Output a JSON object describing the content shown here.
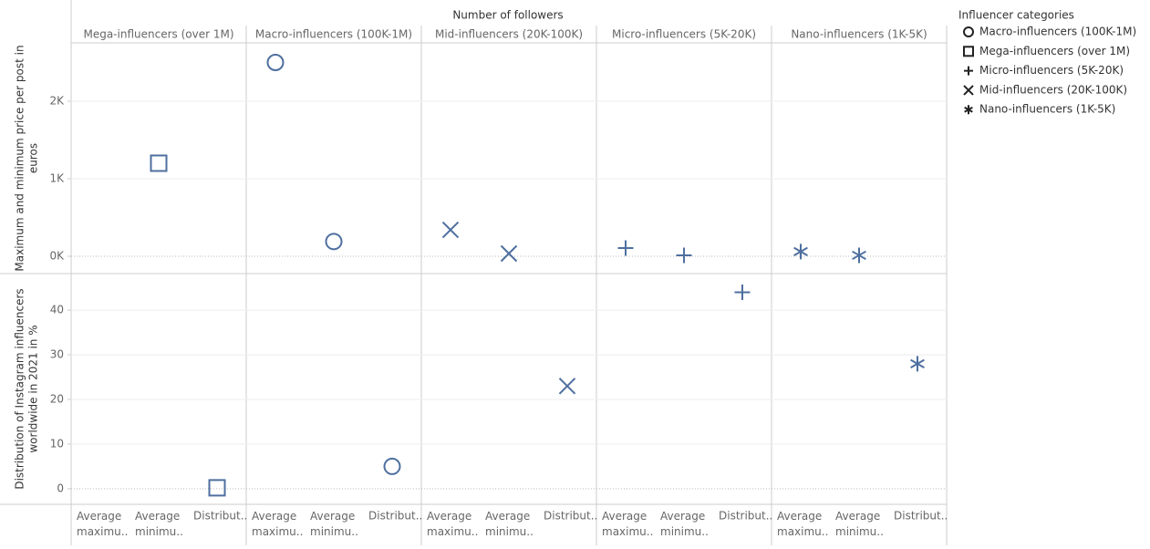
{
  "chart_data": {
    "type": "scatter",
    "title": "Number of followers",
    "color": "#4e6f9f",
    "measures": [
      "Average maximu..",
      "Average minimu..",
      "Distribut.."
    ],
    "measure_pane": [
      0,
      0,
      1
    ],
    "panes": [
      {
        "label": [
          "Maximum and minimum price per post in",
          "euros"
        ],
        "ylim": [
          -224,
          2753
        ],
        "yticks": [
          {
            "value": 0,
            "label": "0K"
          },
          {
            "value": 1000,
            "label": "1K"
          },
          {
            "value": 2000,
            "label": "2K"
          }
        ]
      },
      {
        "label": [
          "Distribution of Instagram influencers",
          "worldwide in 2021 in %"
        ],
        "ylim": [
          -3.5,
          48.2
        ],
        "yticks": [
          0,
          10,
          20,
          30,
          40
        ]
      }
    ],
    "columns": [
      {
        "name": "Mega-influencers (over 1M)",
        "shape": "square",
        "values": [
          null,
          1200,
          0.2
        ]
      },
      {
        "name": "Macro-influencers (100K-1M)",
        "shape": "circle",
        "values": [
          2500,
          190,
          5
        ]
      },
      {
        "name": "Mid-influencers (20K-100K)",
        "shape": "x",
        "values": [
          340,
          35,
          23
        ]
      },
      {
        "name": "Micro-influencers (5K-20K)",
        "shape": "plus",
        "values": [
          105,
          12,
          44
        ]
      },
      {
        "name": "Nano-influencers (1K-5K)",
        "shape": "asterisk",
        "values": [
          60,
          12,
          28
        ]
      }
    ],
    "legend": {
      "title": "Influencer categories",
      "entries": [
        {
          "name": "Macro-influencers (100K-1M)",
          "shape": "circle"
        },
        {
          "name": "Mega-influencers (over 1M)",
          "shape": "square"
        },
        {
          "name": "Micro-influencers (5K-20K)",
          "shape": "plus"
        },
        {
          "name": "Mid-influencers (20K-100K)",
          "shape": "x"
        },
        {
          "name": "Nano-influencers (1K-5K)",
          "shape": "asterisk"
        }
      ]
    }
  }
}
